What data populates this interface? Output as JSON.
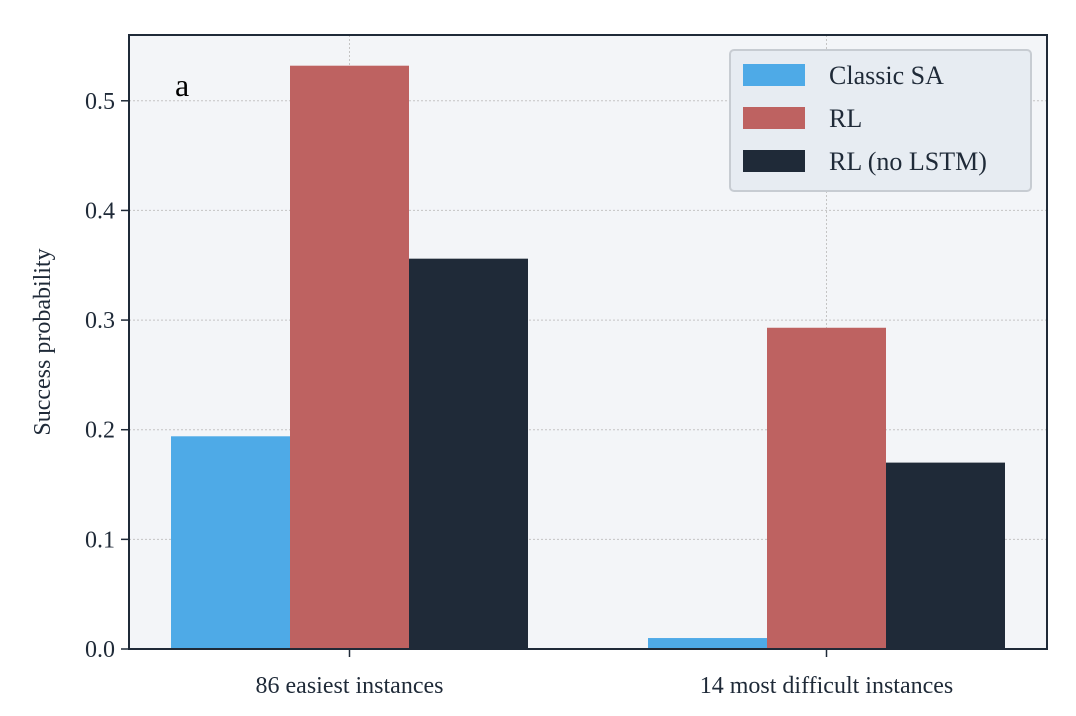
{
  "chart_data": {
    "type": "bar",
    "panel_label": "a",
    "title": "",
    "xlabel": "",
    "ylabel": "Success probability",
    "categories": [
      "86 easiest instances",
      "14 most difficult instances"
    ],
    "series": [
      {
        "name": "Classic SA",
        "color": "#4eaae7",
        "values": [
          0.194,
          0.01
        ]
      },
      {
        "name": "RL",
        "color": "#be6261",
        "values": [
          0.532,
          0.293
        ]
      },
      {
        "name": "RL (no LSTM)",
        "color": "#1f2a38",
        "values": [
          0.356,
          0.17
        ]
      }
    ],
    "ylim": [
      0,
      0.56
    ],
    "yticks": [
      "0.0",
      "0.1",
      "0.2",
      "0.3",
      "0.4",
      "0.5"
    ],
    "grid": true,
    "legend_position": "top-right",
    "background_color": "#f3f5f8",
    "axis_color": "#1f2a38"
  }
}
